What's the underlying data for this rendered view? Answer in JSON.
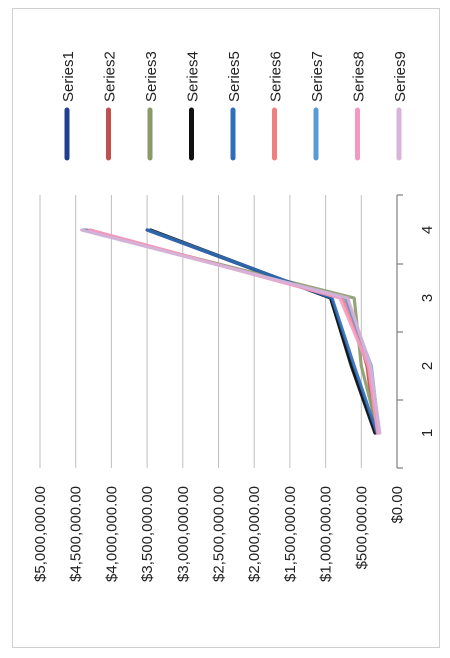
{
  "chart_data": {
    "type": "line",
    "categories": [
      "1",
      "2",
      "3",
      "4"
    ],
    "ylim": [
      0,
      5000000
    ],
    "y_ticks": [
      0,
      500000,
      1000000,
      1500000,
      2000000,
      2500000,
      3000000,
      3500000,
      4000000,
      4500000,
      5000000
    ],
    "y_tick_labels": [
      "$0.00",
      "$500,000.00",
      "$1,000,000.00",
      "$1,500,000.00",
      "$2,000,000.00",
      "$2,500,000.00",
      "$3,000,000.00",
      "$3,500,000.00",
      "$4,000,000.00",
      "$4,500,000.00",
      "$5,000,000.00"
    ],
    "grid": true,
    "legend_position": "right",
    "orientation": "rotated-90-clockwise",
    "series": [
      {
        "name": "Series1",
        "color": "#1f3f8f",
        "values": [
          300000,
          630000,
          930000,
          3500000
        ]
      },
      {
        "name": "Series2",
        "color": "#c0504d",
        "values": [
          300000,
          420000,
          700000,
          4350000
        ]
      },
      {
        "name": "Series3",
        "color": "#8c9a6a",
        "values": [
          260000,
          500000,
          600000,
          4400000
        ]
      },
      {
        "name": "Series4",
        "color": "#111111",
        "values": [
          310000,
          640000,
          930000,
          3450000
        ]
      },
      {
        "name": "Series5",
        "color": "#2f6fb8",
        "values": [
          280000,
          600000,
          910000,
          3480000
        ]
      },
      {
        "name": "Series6",
        "color": "#f08080",
        "values": [
          260000,
          380000,
          760000,
          4300000
        ]
      },
      {
        "name": "Series7",
        "color": "#5b9bd5",
        "values": [
          250000,
          360000,
          720000,
          4380000
        ]
      },
      {
        "name": "Series8",
        "color": "#f49ac2",
        "values": [
          270000,
          400000,
          800000,
          4300000
        ]
      },
      {
        "name": "Series9",
        "color": "#d8b4d8",
        "values": [
          240000,
          370000,
          690000,
          4420000
        ]
      }
    ]
  }
}
